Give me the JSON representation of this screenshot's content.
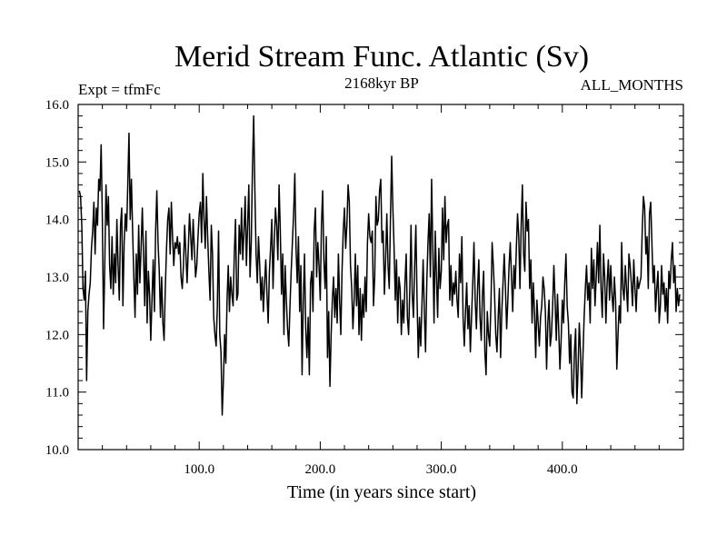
{
  "chart_data": {
    "type": "line",
    "title": "Merid Stream Func. Atlantic (Sv)",
    "left_label": "Expt = tfmFc",
    "center_label": "2168kyr BP",
    "right_label": "ALL_MONTHS",
    "xlabel": "Time (in years since start)",
    "ylabel": "",
    "xlim": [
      0,
      500
    ],
    "ylim": [
      10.0,
      16.0
    ],
    "x_ticks": [
      100,
      200,
      300,
      400
    ],
    "x_tick_labels": [
      "100.0",
      "200.0",
      "300.0",
      "400.0"
    ],
    "y_ticks": [
      10,
      11,
      12,
      13,
      14,
      15,
      16
    ],
    "y_tick_labels": [
      "10.0",
      "11.0",
      "12.0",
      "13.0",
      "14.0",
      "15.0",
      "16.0"
    ],
    "series": [
      {
        "name": "Expt = tfmFc",
        "x_start": 1,
        "x_step": 1,
        "values": [
          14.5,
          14.4,
          13.9,
          12.8,
          12.6,
          13.1,
          11.2,
          12.4,
          12.7,
          12.9,
          13.5,
          13.8,
          14.3,
          13.4,
          14.2,
          13.9,
          14.7,
          14.5,
          15.3,
          14.0,
          12.1,
          13.2,
          14.6,
          13.9,
          14.4,
          13.2,
          12.8,
          13.7,
          12.7,
          13.4,
          12.9,
          14.0,
          13.2,
          12.6,
          13.9,
          14.2,
          12.5,
          13.6,
          14.1,
          13.8,
          14.6,
          15.5,
          14.0,
          14.7,
          13.8,
          13.0,
          12.3,
          13.4,
          12.7,
          13.9,
          12.9,
          13.5,
          14.2,
          13.4,
          12.5,
          13.8,
          12.2,
          13.1,
          12.7,
          11.9,
          12.6,
          13.3,
          12.4,
          13.8,
          14.5,
          13.6,
          13.1,
          12.3,
          13.0,
          12.2,
          11.9,
          12.8,
          13.5,
          14.0,
          14.2,
          13.4,
          14.3,
          13.7,
          13.2,
          13.6,
          13.5,
          13.7,
          13.4,
          13.6,
          13.0,
          12.8,
          13.2,
          13.9,
          13.4,
          12.9,
          13.5,
          14.1,
          13.7,
          13.3,
          14.0,
          13.5,
          13.0,
          13.2,
          13.7,
          14.1,
          14.3,
          13.6,
          14.8,
          14.0,
          13.5,
          14.4,
          13.7,
          13.1,
          12.6,
          13.9,
          13.4,
          12.3,
          12.0,
          11.8,
          12.5,
          13.8,
          12.0,
          11.7,
          10.6,
          11.2,
          12.0,
          11.5,
          12.6,
          13.2,
          12.4,
          13.0,
          12.7,
          12.5,
          13.4,
          14.0,
          12.6,
          12.7,
          13.9,
          13.4,
          14.2,
          13.3,
          13.8,
          14.4,
          13.2,
          13.9,
          14.6,
          13.0,
          13.6,
          14.9,
          15.8,
          14.5,
          13.4,
          12.9,
          13.7,
          13.2,
          12.6,
          13.0,
          12.4,
          12.9,
          13.3,
          12.7,
          12.2,
          13.1,
          13.5,
          14.0,
          12.8,
          13.6,
          14.2,
          13.9,
          13.3,
          14.6,
          13.8,
          12.7,
          13.4,
          12.0,
          13.2,
          12.6,
          12.1,
          11.8,
          12.5,
          13.1,
          13.6,
          14.1,
          14.8,
          13.5,
          12.9,
          13.7,
          12.4,
          13.2,
          11.3,
          12.6,
          13.4,
          12.1,
          11.6,
          12.3,
          11.3,
          12.9,
          13.1,
          12.4,
          13.8,
          14.2,
          13.0,
          13.6,
          13.2,
          12.6,
          13.9,
          14.5,
          13.3,
          12.8,
          13.7,
          11.6,
          12.4,
          11.1,
          12.0,
          12.6,
          13.0,
          12.3,
          12.8,
          12.2,
          13.4,
          12.6,
          12.0,
          13.1,
          13.8,
          14.2,
          13.5,
          13.9,
          14.6,
          14.3,
          13.2,
          12.8,
          12.1,
          12.6,
          13.4,
          12.5,
          13.2,
          12.0,
          12.8,
          11.9,
          12.7,
          12.3,
          13.0,
          12.4,
          13.6,
          14.1,
          13.7,
          13.6,
          13.8,
          12.5,
          13.0,
          14.4,
          13.9,
          14.0,
          14.5,
          14.7,
          13.6,
          13.8,
          12.7,
          13.3,
          14.1,
          13.2,
          12.8,
          14.0,
          15.1,
          14.2,
          13.5,
          12.6,
          13.3,
          12.2,
          13.0,
          12.8,
          12.0,
          12.6,
          12.2,
          12.9,
          13.4,
          12.3,
          12.0,
          12.8,
          13.9,
          12.7,
          12.3,
          13.2,
          13.9,
          12.6,
          11.6,
          12.3,
          11.8,
          12.5,
          13.3,
          12.4,
          11.7,
          12.9,
          13.6,
          14.1,
          13.0,
          14.7,
          13.5,
          12.2,
          13.8,
          13.0,
          12.3,
          13.5,
          12.8,
          13.1,
          14.2,
          13.3,
          14.4,
          13.6,
          13.9,
          14.0,
          12.6,
          13.2,
          12.5,
          12.9,
          12.7,
          13.1,
          12.6,
          12.3,
          13.4,
          12.9,
          13.7,
          12.3,
          11.8,
          12.4,
          12.9,
          12.1,
          12.5,
          11.7,
          12.3,
          12.9,
          13.6,
          12.6,
          12.1,
          12.8,
          13.3,
          12.3,
          11.9,
          12.7,
          13.1,
          11.7,
          11.3,
          12.4,
          12.0,
          11.8,
          12.5,
          13.6,
          13.2,
          12.7,
          12.0,
          11.7,
          12.3,
          12.8,
          11.6,
          12.4,
          12.9,
          13.4,
          12.8,
          12.1,
          12.6,
          13.2,
          13.6,
          13.0,
          12.4,
          13.2,
          12.8,
          13.5,
          14.1,
          13.7,
          12.8,
          13.9,
          14.6,
          13.4,
          13.1,
          14.3,
          13.8,
          14.0,
          12.8,
          13.3,
          12.2,
          12.9,
          12.4,
          11.6,
          12.6,
          12.2,
          11.8,
          12.3,
          12.5,
          13.0,
          12.8,
          12.4,
          11.4,
          12.2,
          12.6,
          11.8,
          12.0,
          12.5,
          13.2,
          12.6,
          11.9,
          12.7,
          12.1,
          11.4,
          11.9,
          12.6,
          12.2,
          12.9,
          13.4,
          12.5,
          12.2,
          11.5,
          12.0,
          11.0,
          10.9,
          11.7,
          12.1,
          10.8,
          11.4,
          12.2,
          11.7,
          10.9,
          11.6,
          12.3,
          12.8,
          13.2,
          12.6,
          12.9,
          12.2,
          13.5,
          12.8,
          13.3,
          12.5,
          13.0,
          13.6,
          12.9,
          13.9,
          12.8,
          12.3,
          13.4,
          13.0,
          12.2,
          12.9,
          13.3,
          12.6,
          13.2,
          12.7,
          12.4,
          13.0,
          12.6,
          11.4,
          12.0,
          12.5,
          12.2,
          13.6,
          12.8,
          12.6,
          13.2,
          12.8,
          12.4,
          13.4,
          13.2,
          12.9,
          12.5,
          13.3,
          12.8,
          12.4,
          13.0,
          12.8,
          12.9,
          13.0,
          13.8,
          14.4,
          14.2,
          13.4,
          13.7,
          12.8,
          14.1,
          14.3,
          13.6,
          12.9,
          13.2,
          12.4,
          12.8,
          13.1,
          12.2,
          12.5,
          13.2,
          12.7,
          12.9,
          12.4,
          12.8,
          12.2,
          13.1,
          12.8,
          13.3,
          13.6,
          12.9,
          13.2,
          12.4,
          12.8,
          12.5,
          12.7
        ]
      }
    ]
  }
}
